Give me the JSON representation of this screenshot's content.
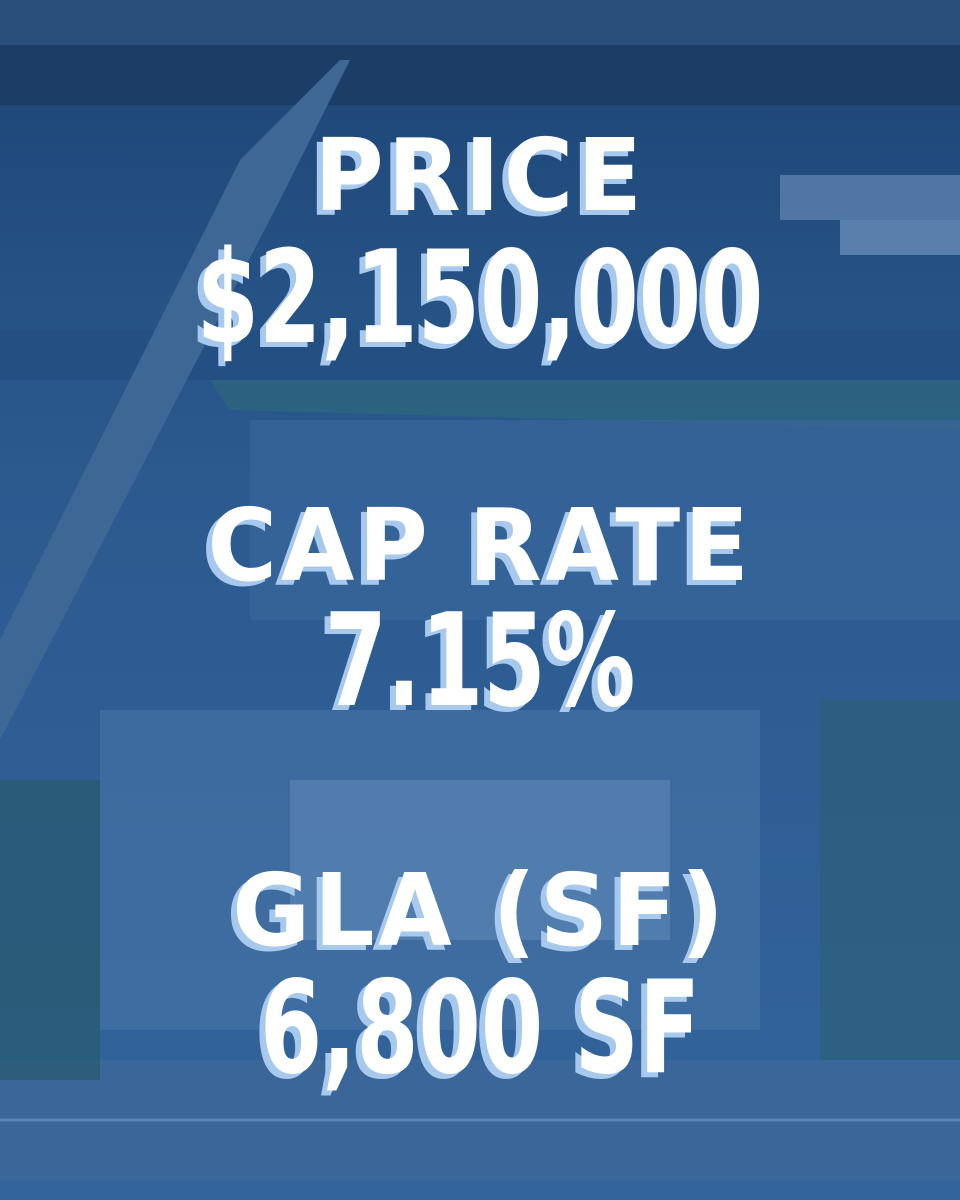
{
  "items": [
    {
      "label": "PRICE",
      "value": "$2,150,000"
    },
    {
      "label": "CAP RATE",
      "value": "7.15%"
    },
    {
      "label": "GLA (SF)",
      "value": "6,800 SF"
    }
  ]
}
